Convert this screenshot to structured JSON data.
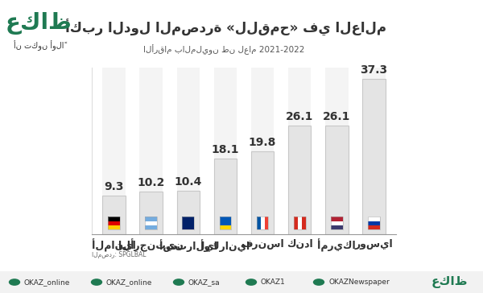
{
  "chart_data": {
    "type": "bar",
    "title": "أكبر الدول المصدرة «للقمح» في العالم",
    "subtitle": "الأرقام بالمليون طن لعام 2021-2022",
    "categories": [
      "ألمانيا",
      "الأرجنتين",
      "أستراليا",
      "أوكرانيا",
      "فرنسا",
      "كندا",
      "أمريكا",
      "روسيا"
    ],
    "values": [
      9.3,
      10.2,
      10.4,
      18.1,
      19.8,
      26.1,
      26.1,
      37.3
    ],
    "color": "#e4e4e4",
    "ylim": [
      0,
      40
    ],
    "data_labels": true,
    "tick_labels": "x",
    "source": "المصدر: SPGLBAL",
    "logo": "عكاظ",
    "tagline": "أن تكون أولاً",
    "footer": [
      "OKAZ_online",
      "OKAZ_online",
      "OKAZ_sa",
      "OKAZ1",
      "OKAZNewspaper",
      "عكاظ"
    ]
  }
}
